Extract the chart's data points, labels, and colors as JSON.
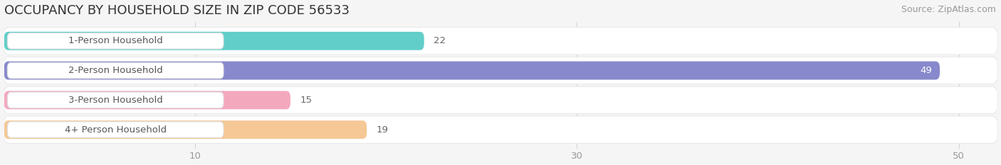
{
  "title": "OCCUPANCY BY HOUSEHOLD SIZE IN ZIP CODE 56533",
  "source": "Source: ZipAtlas.com",
  "categories": [
    "1-Person Household",
    "2-Person Household",
    "3-Person Household",
    "4+ Person Household"
  ],
  "values": [
    22,
    49,
    15,
    19
  ],
  "bar_colors": [
    "#62CEC9",
    "#8888CC",
    "#F4A8BE",
    "#F5C896"
  ],
  "row_bg_color": "#EFEFEF",
  "label_box_color": "#FFFFFF",
  "label_box_border": "#DDDDDD",
  "xlim_max": 52,
  "xticks": [
    10,
    30,
    50
  ],
  "background_color": "#F5F5F5",
  "title_fontsize": 13,
  "source_fontsize": 9,
  "label_fontsize": 9.5,
  "value_fontsize": 9.5,
  "title_color": "#333333",
  "source_color": "#999999",
  "label_color": "#555555",
  "value_color_inside": "#FFFFFF",
  "value_color_outside": "#666666",
  "tick_color": "#999999"
}
